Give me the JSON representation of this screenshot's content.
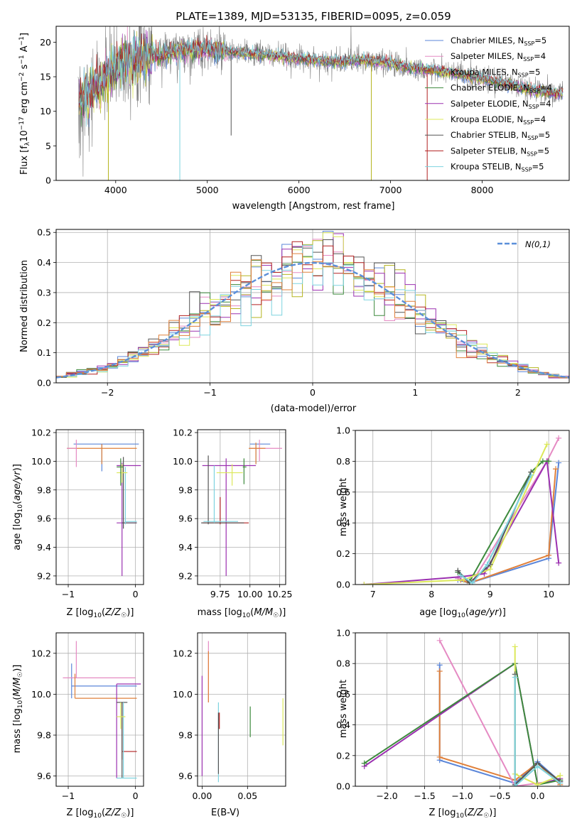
{
  "title": "PLATE=1389, MJD=53135, FIBERID=0095, z=0.059",
  "chart_data": [
    {
      "id": "spectrum",
      "type": "line",
      "xlabel": "wavelength [Angstrom, rest frame]",
      "ylabel": "Flux [f_λ 10^-17 erg cm^-2 s^-1 A^-1]",
      "xlim": [
        3350,
        8950
      ],
      "ylim": [
        0,
        22.3
      ],
      "xticks": [
        4000,
        5000,
        6000,
        7000,
        8000
      ],
      "yticks": [
        0,
        5,
        10,
        15,
        20
      ],
      "grid": false,
      "legend_position": "top-right",
      "continuum": {
        "x": [
          3600,
          3700,
          3800,
          3900,
          4000,
          4100,
          4200,
          4300,
          4400,
          4500,
          4600,
          4800,
          5000,
          5200,
          5400,
          5600,
          5800,
          6000,
          6200,
          6400,
          6600,
          6800,
          7000,
          7200,
          7400,
          7600,
          7800,
          8000,
          8200,
          8400,
          8600,
          8800
        ],
        "y": [
          11.5,
          12.5,
          13.5,
          15.0,
          16.5,
          17.2,
          17.8,
          17.5,
          18.0,
          18.3,
          18.5,
          18.8,
          18.9,
          18.6,
          18.4,
          18.2,
          17.9,
          17.6,
          17.4,
          17.1,
          17.4,
          17.3,
          17.0,
          16.3,
          16.0,
          15.7,
          15.2,
          14.7,
          14.1,
          13.5,
          13.0,
          12.6
        ]
      },
      "spikes": [
        {
          "x": 3920,
          "y": 0,
          "series": 2
        },
        {
          "x": 4700,
          "y": 0,
          "series": 8
        },
        {
          "x": 5260,
          "y": 6.5,
          "series": 6
        },
        {
          "x": 6790,
          "y": 0,
          "series": 2
        },
        {
          "x": 7400,
          "y": 0,
          "series": 7
        }
      ],
      "series": [
        {
          "name": "Chabrier MILES, N_SSP=5",
          "color": "#5b86d9"
        },
        {
          "name": "Salpeter MILES, N_SSP=4",
          "color": "#e58ac3"
        },
        {
          "name": "Kroupa MILES, N_SSP=5",
          "color": "#b5b520"
        },
        {
          "name": "Chabrier ELODIE, N_SSP=4",
          "color": "#3d8a3d"
        },
        {
          "name": "Salpeter ELODIE, N_SSP=4",
          "color": "#9b30b0"
        },
        {
          "name": "Kroupa ELODIE, N_SSP=4",
          "color": "#dce85a"
        },
        {
          "name": "Chabrier STELIB, N_SSP=5",
          "color": "#555555"
        },
        {
          "name": "Salpeter STELIB, N_SSP=5",
          "color": "#b22020"
        },
        {
          "name": "Kroupa STELIB, N_SSP=5",
          "color": "#7dd3df"
        }
      ]
    },
    {
      "id": "residuals",
      "type": "line",
      "xlabel": "(data-model)/error",
      "ylabel": "Normed distribution",
      "xlim": [
        -2.5,
        2.5
      ],
      "ylim": [
        0,
        0.51
      ],
      "xticks": [
        -2,
        -1,
        0,
        1,
        2
      ],
      "yticks": [
        0.0,
        0.1,
        0.2,
        0.3,
        0.4,
        0.5
      ],
      "grid": true,
      "legend_position": "top-right",
      "normal_label": "N(0,1)",
      "normal_color": "#5b8fd9",
      "bin_width": 0.1,
      "series_colors": [
        "#5b86d9",
        "#e58ac3",
        "#b5b520",
        "#3d8a3d",
        "#9b30b0",
        "#dce85a",
        "#555555",
        "#b22020",
        "#7dd3df",
        "#e0803a"
      ]
    },
    {
      "id": "age-vs-Z",
      "type": "scatter",
      "xlabel": "Z [log10(Z/Z☉)]",
      "ylabel": "age [log10(age/yr)]",
      "xlim": [
        -1.18,
        0.12
      ],
      "ylim": [
        9.14,
        10.22
      ],
      "xticks": [
        -1,
        0
      ],
      "yticks": [
        9.2,
        9.4,
        9.6,
        9.8,
        10.0,
        10.2
      ],
      "grid": true,
      "points": [
        {
          "x": -0.5,
          "y": 10.12,
          "ex": [
            -0.92,
            0.05
          ],
          "ey": [
            9.93,
            10.12
          ],
          "color": "#5b86d9"
        },
        {
          "x": -0.5,
          "y": 10.09,
          "ex": [
            -1.02,
            0.02
          ],
          "ey": [
            9.98,
            10.12
          ],
          "color": "#e0803a"
        },
        {
          "x": -0.88,
          "y": 10.09,
          "ex": [
            -1.02,
            -0.88
          ],
          "ey": [
            9.96,
            10.15
          ],
          "color": "#e58ac3"
        },
        {
          "x": -0.2,
          "y": 9.97,
          "ex": [
            -0.28,
            0.08
          ],
          "ey": [
            9.85,
            9.99
          ],
          "color": "#9b30b0"
        },
        {
          "x": -0.2,
          "y": 9.57,
          "ex": [
            -0.28,
            0.02
          ],
          "ey": [
            9.2,
            9.98
          ],
          "color": "#9b30b0"
        },
        {
          "x": -0.18,
          "y": 9.57,
          "ex": [
            -0.2,
            0.02
          ],
          "ey": [
            9.53,
            10.03
          ],
          "color": "#555555"
        },
        {
          "x": -0.15,
          "y": 9.58,
          "ex": [
            -0.16,
            0.02
          ],
          "ey": [
            9.56,
            9.96
          ],
          "color": "#7dd3df"
        },
        {
          "x": -0.2,
          "y": 9.92,
          "ex": [
            -0.28,
            -0.12
          ],
          "ey": [
            9.85,
            9.98
          ],
          "color": "#dce85a"
        },
        {
          "x": -0.22,
          "y": 9.96,
          "ex": [
            -0.28,
            -0.18
          ],
          "ey": [
            9.83,
            10.02
          ],
          "color": "#3d8a3d"
        }
      ]
    },
    {
      "id": "age-vs-mass",
      "type": "scatter",
      "xlabel": "mass [log10(M/M☉)]",
      "ylabel": "",
      "xlim": [
        9.56,
        10.3
      ],
      "ylim": [
        9.14,
        10.22
      ],
      "xticks": [
        9.75,
        10.0,
        10.25
      ],
      "yticks": [
        9.2,
        9.4,
        9.6,
        9.8,
        10.0,
        10.2
      ],
      "grid": true,
      "points": [
        {
          "x": 10.05,
          "y": 10.12,
          "ex": [
            10.0,
            10.17
          ],
          "ey": [
            9.98,
            10.12
          ],
          "color": "#5b86d9"
        },
        {
          "x": 10.08,
          "y": 10.09,
          "ex": [
            10.0,
            10.27
          ],
          "ey": [
            10.0,
            10.15
          ],
          "color": "#e58ac3"
        },
        {
          "x": 10.05,
          "y": 10.09,
          "ex": [
            9.99,
            10.13
          ],
          "ey": [
            9.98,
            10.13
          ],
          "color": "#e0803a"
        },
        {
          "x": 9.8,
          "y": 9.97,
          "ex": [
            9.6,
            10.05
          ],
          "ey": [
            9.2,
            10.02
          ],
          "color": "#9b30b0"
        },
        {
          "x": 9.75,
          "y": 9.57,
          "ex": [
            9.6,
            9.99
          ],
          "ey": [
            9.56,
            9.75
          ],
          "color": "#b22020"
        },
        {
          "x": 9.65,
          "y": 9.57,
          "ex": [
            9.59,
            9.95
          ],
          "ey": [
            9.56,
            10.04
          ],
          "color": "#555555"
        },
        {
          "x": 9.7,
          "y": 9.58,
          "ex": [
            9.61,
            9.9
          ],
          "ey": [
            9.57,
            9.97
          ],
          "color": "#7dd3df"
        },
        {
          "x": 9.85,
          "y": 9.92,
          "ex": [
            9.72,
            9.94
          ],
          "ey": [
            9.83,
            9.98
          ],
          "color": "#dce85a"
        },
        {
          "x": 9.95,
          "y": 9.96,
          "ex": [
            9.94,
            9.97
          ],
          "ey": [
            9.84,
            10.02
          ],
          "color": "#3d8a3d"
        }
      ]
    },
    {
      "id": "massweight-vs-age",
      "type": "line",
      "xlabel": "age [log10(age/yr)]",
      "ylabel": "mass weight",
      "xlim": [
        6.7,
        10.35
      ],
      "ylim": [
        0,
        1.0
      ],
      "xticks": [
        7,
        8,
        9,
        10
      ],
      "yticks": [
        0.0,
        0.2,
        0.4,
        0.6,
        0.8,
        1.0
      ],
      "grid": true,
      "series": [
        {
          "color": "#5b86d9",
          "x": [
            8.45,
            8.65,
            10.0,
            10.17
          ],
          "y": [
            0.03,
            0.01,
            0.17,
            0.79
          ]
        },
        {
          "color": "#e0803a",
          "x": [
            8.5,
            8.65,
            10.0,
            10.12
          ],
          "y": [
            0.03,
            0.01,
            0.19,
            0.75
          ]
        },
        {
          "color": "#e58ac3",
          "x": [
            8.45,
            8.7,
            9.97,
            10.17
          ],
          "y": [
            0.04,
            0.02,
            0.8,
            0.95
          ]
        },
        {
          "color": "#9b30b0",
          "x": [
            6.85,
            8.5,
            8.9,
            9.97,
            10.17
          ],
          "y": [
            0.0,
            0.05,
            0.07,
            0.8,
            0.14
          ]
        },
        {
          "color": "#3d8a3d",
          "x": [
            8.45,
            8.65,
            9.7,
            9.9,
            10.0
          ],
          "y": [
            0.08,
            0.02,
            0.73,
            0.8,
            0.8
          ]
        },
        {
          "color": "#dce85a",
          "x": [
            6.85,
            8.55,
            9.0,
            9.97
          ],
          "y": [
            0.0,
            0.03,
            0.1,
            0.91
          ]
        },
        {
          "color": "#555555",
          "x": [
            8.45,
            8.65,
            9.0,
            9.7
          ],
          "y": [
            0.09,
            0.01,
            0.13,
            0.73
          ]
        },
        {
          "color": "#7dd3df",
          "x": [
            8.5,
            8.7,
            8.95,
            9.7
          ],
          "y": [
            0.06,
            0.01,
            0.13,
            0.71
          ]
        }
      ]
    },
    {
      "id": "mass-vs-Z",
      "type": "scatter",
      "xlabel": "Z [log10(Z/Z☉)]",
      "ylabel": "mass [log10(M/M☉)]",
      "xlim": [
        -1.18,
        0.12
      ],
      "ylim": [
        9.55,
        10.3
      ],
      "xticks": [
        -1,
        0
      ],
      "yticks": [
        9.6,
        9.8,
        10.0,
        10.2
      ],
      "grid": true,
      "points": [
        {
          "x": -0.95,
          "y": 10.04,
          "ex": [
            -0.95,
            0.02
          ],
          "ey": [
            9.98,
            10.15
          ],
          "color": "#5b86d9"
        },
        {
          "x": -0.88,
          "y": 10.08,
          "ex": [
            -1.08,
            0.0
          ],
          "ey": [
            10.08,
            10.26
          ],
          "color": "#e58ac3"
        },
        {
          "x": -0.9,
          "y": 9.98,
          "ex": [
            -0.9,
            0.02
          ],
          "ey": [
            9.98,
            10.1
          ],
          "color": "#e0803a"
        },
        {
          "x": -0.28,
          "y": 10.05,
          "ex": [
            -0.28,
            0.08
          ],
          "ey": [
            9.59,
            10.05
          ],
          "color": "#9b30b0"
        },
        {
          "x": -0.2,
          "y": 9.72,
          "ex": [
            -0.2,
            0.02
          ],
          "ey": [
            9.68,
            9.96
          ],
          "color": "#b22020"
        },
        {
          "x": -0.2,
          "y": 9.96,
          "ex": [
            -0.28,
            -0.12
          ],
          "ey": [
            9.59,
            9.96
          ],
          "color": "#555555"
        },
        {
          "x": -0.18,
          "y": 9.59,
          "ex": [
            -0.28,
            0.02
          ],
          "ey": [
            9.59,
            9.96
          ],
          "color": "#7dd3df"
        },
        {
          "x": -0.22,
          "y": 9.89,
          "ex": [
            -0.28,
            -0.15
          ],
          "ey": [
            9.83,
            9.96
          ],
          "color": "#dce85a"
        }
      ]
    },
    {
      "id": "mass-vs-EBV",
      "type": "scatter",
      "xlabel": "E(B-V)",
      "ylabel": "",
      "xlim": [
        -0.005,
        0.092
      ],
      "ylim": [
        9.55,
        10.3
      ],
      "xticks": [
        0.0,
        0.05
      ],
      "yticks": [
        9.6,
        9.8,
        10.0,
        10.2
      ],
      "grid": true,
      "points": [
        {
          "x": 0.0,
          "ey": [
            9.6,
            10.09
          ],
          "color": "#9b30b0"
        },
        {
          "x": 0.007,
          "ey": [
            9.96,
            10.26
          ],
          "color": "#e58ac3"
        },
        {
          "x": 0.007,
          "ey": [
            9.96,
            10.21
          ],
          "color": "#e0803a"
        },
        {
          "x": 0.018,
          "ey": [
            9.57,
            9.96
          ],
          "color": "#7dd3df"
        },
        {
          "x": 0.018,
          "ey": [
            9.61,
            9.91
          ],
          "color": "#555555"
        },
        {
          "x": 0.019,
          "ey": [
            9.83,
            9.91
          ],
          "color": "#b22020"
        },
        {
          "x": 0.053,
          "ey": [
            9.79,
            9.94
          ],
          "color": "#3d8a3d"
        },
        {
          "x": 0.089,
          "ey": [
            9.75,
            9.98
          ],
          "color": "#dce85a"
        }
      ]
    },
    {
      "id": "massweight-vs-Z",
      "type": "line",
      "xlabel": "Z [log10(Z/Z☉)]",
      "ylabel": "mass weight",
      "xlim": [
        -2.42,
        0.42
      ],
      "ylim": [
        0,
        1.0
      ],
      "xticks": [
        -2.0,
        -1.5,
        -1.0,
        -0.5,
        0.0
      ],
      "yticks": [
        0.0,
        0.2,
        0.4,
        0.6,
        0.8,
        1.0
      ],
      "grid": true,
      "series": [
        {
          "color": "#5b86d9",
          "x": [
            -1.3,
            -1.3,
            -0.3,
            0.0,
            0.3
          ],
          "y": [
            0.79,
            0.17,
            0.02,
            0.16,
            0.03
          ]
        },
        {
          "color": "#e0803a",
          "x": [
            -1.3,
            -1.3,
            -0.3,
            0.0,
            0.3
          ],
          "y": [
            0.75,
            0.19,
            0.04,
            0.15,
            0.01
          ]
        },
        {
          "color": "#e58ac3",
          "x": [
            -1.3,
            -0.3,
            0.0,
            0.3
          ],
          "y": [
            0.95,
            0.0,
            0.02,
            0.04
          ]
        },
        {
          "color": "#9b30b0",
          "x": [
            -2.3,
            -0.3,
            0.0,
            0.3
          ],
          "y": [
            0.13,
            0.8,
            0.01,
            0.05
          ]
        },
        {
          "color": "#3d8a3d",
          "x": [
            -2.3,
            -0.3,
            0.0,
            0.3
          ],
          "y": [
            0.15,
            0.8,
            0.01,
            0.04
          ]
        },
        {
          "color": "#dce85a",
          "x": [
            -0.3,
            -0.3,
            0.0,
            0.3
          ],
          "y": [
            0.91,
            0.08,
            0.01,
            0.07
          ]
        },
        {
          "color": "#555555",
          "x": [
            -0.3,
            -0.3,
            0.0,
            0.3
          ],
          "y": [
            0.73,
            0.01,
            0.15,
            0.03
          ]
        },
        {
          "color": "#7dd3df",
          "x": [
            -0.3,
            -0.3,
            0.0,
            0.3
          ],
          "y": [
            0.71,
            0.0,
            0.13,
            0.02
          ]
        }
      ]
    }
  ]
}
